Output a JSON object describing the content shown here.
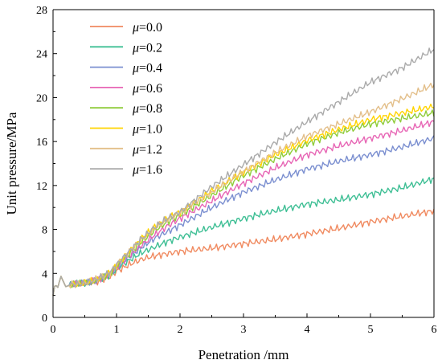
{
  "chart_data": {
    "type": "line",
    "title": "",
    "xlabel": "Penetration /mm",
    "ylabel": "Unit pressure/MPa",
    "xlim": [
      0,
      6
    ],
    "ylim": [
      0,
      28
    ],
    "xticks": [
      0,
      1,
      2,
      3,
      4,
      5,
      6
    ],
    "yticks": [
      0,
      4,
      8,
      12,
      16,
      20,
      24,
      28
    ],
    "legend": "top-left",
    "grid": false,
    "legend_symbol": "μ",
    "series": [
      {
        "name": "=0.0",
        "color": "#f08a60",
        "x": [
          0,
          0.03,
          0.08,
          0.12,
          0.2,
          0.3,
          0.5,
          0.7,
          0.9,
          1.0,
          1.2,
          1.4,
          1.6,
          1.8,
          2.0,
          2.5,
          3.0,
          3.5,
          4.0,
          4.5,
          5.0,
          5.5,
          6.0
        ],
        "y": [
          2.0,
          3.0,
          2.7,
          3.8,
          2.8,
          3.0,
          3.1,
          3.3,
          3.7,
          4.2,
          4.8,
          5.3,
          5.6,
          5.8,
          6.0,
          6.3,
          6.7,
          7.1,
          7.6,
          8.1,
          8.7,
          9.2,
          9.7
        ]
      },
      {
        "name": "=0.2",
        "color": "#3fbf95",
        "x": [
          0,
          0.03,
          0.08,
          0.12,
          0.2,
          0.3,
          0.5,
          0.7,
          0.9,
          1.0,
          1.2,
          1.4,
          1.6,
          1.8,
          2.0,
          2.5,
          3.0,
          3.5,
          4.0,
          4.5,
          5.0,
          5.5,
          6.0
        ],
        "y": [
          2.0,
          3.0,
          2.7,
          3.8,
          2.8,
          3.0,
          3.1,
          3.4,
          3.9,
          4.4,
          5.2,
          5.9,
          6.4,
          6.9,
          7.3,
          8.2,
          9.0,
          9.7,
          10.3,
          10.7,
          11.2,
          11.8,
          12.6
        ]
      },
      {
        "name": "=0.4",
        "color": "#7b8fd0",
        "x": [
          0,
          0.03,
          0.08,
          0.12,
          0.2,
          0.3,
          0.5,
          0.7,
          0.9,
          1.0,
          1.2,
          1.4,
          1.6,
          1.8,
          2.0,
          2.5,
          3.0,
          3.5,
          4.0,
          4.5,
          5.0,
          5.5,
          6.0
        ],
        "y": [
          2.0,
          3.0,
          2.7,
          3.8,
          2.8,
          3.0,
          3.1,
          3.4,
          4.0,
          4.6,
          5.5,
          6.4,
          7.2,
          7.8,
          8.4,
          10.0,
          11.4,
          12.5,
          13.5,
          14.2,
          14.8,
          15.5,
          16.3
        ]
      },
      {
        "name": "=0.6",
        "color": "#e766b5",
        "x": [
          0,
          0.03,
          0.08,
          0.12,
          0.2,
          0.3,
          0.5,
          0.7,
          0.9,
          1.0,
          1.2,
          1.4,
          1.6,
          1.8,
          2.0,
          2.5,
          3.0,
          3.5,
          4.0,
          4.5,
          5.0,
          5.5,
          6.0
        ],
        "y": [
          2.0,
          3.0,
          2.7,
          3.8,
          2.8,
          3.0,
          3.1,
          3.4,
          4.0,
          4.6,
          5.6,
          6.6,
          7.5,
          8.3,
          9.0,
          10.6,
          12.2,
          13.6,
          14.8,
          15.6,
          16.3,
          17.0,
          17.8
        ]
      },
      {
        "name": "=0.8",
        "color": "#8fcc3a",
        "x": [
          0,
          0.03,
          0.08,
          0.12,
          0.2,
          0.3,
          0.5,
          0.7,
          0.9,
          1.0,
          1.2,
          1.4,
          1.6,
          1.8,
          2.0,
          2.5,
          3.0,
          3.5,
          4.0,
          4.5,
          5.0,
          5.5,
          6.0
        ],
        "y": [
          2.0,
          3.0,
          2.7,
          3.8,
          2.8,
          3.0,
          3.1,
          3.4,
          4.0,
          4.7,
          5.8,
          6.9,
          7.9,
          8.7,
          9.3,
          11.1,
          12.9,
          14.4,
          15.8,
          16.8,
          17.6,
          18.1,
          18.6
        ]
      },
      {
        "name": "=1.0",
        "color": "#ffd400",
        "x": [
          0,
          0.03,
          0.08,
          0.12,
          0.2,
          0.3,
          0.5,
          0.7,
          0.9,
          1.0,
          1.2,
          1.4,
          1.6,
          1.8,
          2.0,
          2.5,
          3.0,
          3.5,
          4.0,
          4.5,
          5.0,
          5.5,
          6.0
        ],
        "y": [
          2.0,
          3.0,
          2.7,
          3.8,
          2.8,
          3.0,
          3.1,
          3.5,
          4.1,
          4.8,
          6.0,
          7.2,
          8.2,
          9.0,
          9.6,
          11.5,
          13.2,
          14.8,
          16.1,
          17.1,
          18.0,
          18.6,
          19.2
        ]
      },
      {
        "name": "=1.2",
        "color": "#e3bf8a",
        "x": [
          0,
          0.03,
          0.08,
          0.12,
          0.2,
          0.3,
          0.5,
          0.7,
          0.9,
          1.0,
          1.2,
          1.4,
          1.6,
          1.8,
          2.0,
          2.5,
          3.0,
          3.5,
          4.0,
          4.5,
          5.0,
          5.5,
          6.0
        ],
        "y": [
          2.0,
          3.0,
          2.7,
          3.8,
          2.8,
          3.0,
          3.1,
          3.5,
          4.1,
          4.8,
          6.0,
          7.1,
          8.1,
          8.9,
          9.5,
          11.4,
          13.3,
          15.0,
          16.5,
          17.6,
          18.7,
          19.9,
          21.2
        ]
      },
      {
        "name": "=1.6",
        "color": "#aaaaaa",
        "x": [
          0,
          0.03,
          0.08,
          0.12,
          0.2,
          0.3,
          0.5,
          0.7,
          0.9,
          1.0,
          1.2,
          1.4,
          1.6,
          1.8,
          2.0,
          2.5,
          3.0,
          3.5,
          4.0,
          4.5,
          5.0,
          5.5,
          6.0
        ],
        "y": [
          2.0,
          3.0,
          2.7,
          3.8,
          2.8,
          3.0,
          3.1,
          3.5,
          4.1,
          4.8,
          6.0,
          7.2,
          8.2,
          9.0,
          9.6,
          11.9,
          13.9,
          15.9,
          17.8,
          19.6,
          21.4,
          22.7,
          24.4
        ]
      }
    ]
  }
}
